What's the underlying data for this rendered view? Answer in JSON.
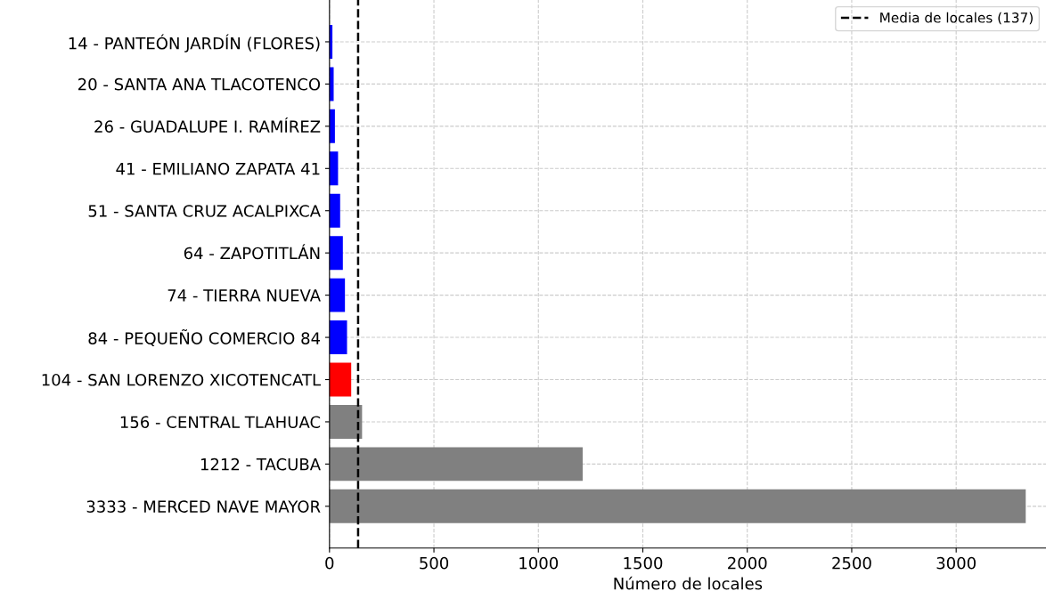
{
  "chart_data": {
    "type": "bar",
    "orientation": "horizontal",
    "xlabel": "Número de locales",
    "categories": [
      "14 - PANTEÓN JARDÍN (FLORES)",
      "20 - SANTA ANA TLACOTENCO",
      "26 - GUADALUPE I. RAMÍREZ",
      "41 - EMILIANO ZAPATA 41",
      "51 - SANTA CRUZ ACALPIXCA",
      "64 - ZAPOTITLÁN",
      "74 - TIERRA NUEVA",
      "84 - PEQUEÑO COMERCIO 84",
      "104 - SAN LORENZO XICOTENCATL",
      "156 - CENTRAL TLAHUAC",
      "1212 - TACUBA",
      "3333 - MERCED NAVE MAYOR"
    ],
    "values": [
      14,
      20,
      26,
      41,
      51,
      64,
      74,
      84,
      104,
      156,
      1212,
      3333
    ],
    "colors": [
      "#0000ff",
      "#0000ff",
      "#0000ff",
      "#0000ff",
      "#0000ff",
      "#0000ff",
      "#0000ff",
      "#0000ff",
      "#ff0000",
      "#808080",
      "#808080",
      "#808080"
    ],
    "xlim": [
      0,
      3430
    ],
    "xticks": [
      0,
      500,
      1000,
      1500,
      2000,
      2500,
      3000
    ],
    "ref_lines": [
      {
        "axis": "x",
        "value": 137,
        "label": "Media de locales (137)",
        "color": "#000000",
        "line_style": "dashed"
      }
    ],
    "grid": true,
    "legend": "top right"
  }
}
